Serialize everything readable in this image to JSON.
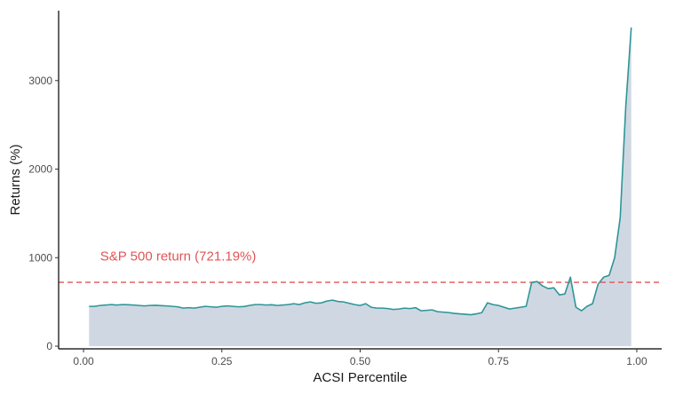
{
  "chart_data": {
    "type": "area",
    "xlabel": "ACSI Percentile",
    "ylabel": "Returns (%)",
    "xlim": [
      -0.045,
      1.045
    ],
    "ylim": [
      -30,
      3790
    ],
    "x_ticks": [
      0.0,
      0.25,
      0.5,
      0.75,
      1.0
    ],
    "x_tick_labels": [
      "0.00",
      "0.25",
      "0.50",
      "0.75",
      "1.00"
    ],
    "y_ticks": [
      0,
      1000,
      2000,
      3000
    ],
    "y_tick_labels": [
      "0",
      "1000",
      "2000",
      "3000"
    ],
    "grid": false,
    "colors": {
      "line": "#2e9597",
      "fill": "#cfd8e2",
      "reference": "#e05556",
      "axis": "#000000"
    },
    "reference_line": {
      "value": 721.19,
      "label": "S&P 500 return (721.19%)",
      "style": "dashed"
    },
    "series": [
      {
        "x": [
          0.01,
          0.02,
          0.03,
          0.04,
          0.05,
          0.06,
          0.07,
          0.08,
          0.09,
          0.1,
          0.11,
          0.12,
          0.13,
          0.14,
          0.15,
          0.16,
          0.17,
          0.18,
          0.19,
          0.2,
          0.21,
          0.22,
          0.23,
          0.24,
          0.25,
          0.26,
          0.27,
          0.28,
          0.29,
          0.3,
          0.31,
          0.32,
          0.33,
          0.34,
          0.35,
          0.36,
          0.37,
          0.38,
          0.39,
          0.4,
          0.41,
          0.42,
          0.43,
          0.44,
          0.45,
          0.46,
          0.47,
          0.48,
          0.49,
          0.5,
          0.51,
          0.52,
          0.53,
          0.54,
          0.55,
          0.56,
          0.57,
          0.58,
          0.59,
          0.6,
          0.61,
          0.62,
          0.63,
          0.64,
          0.65,
          0.66,
          0.67,
          0.68,
          0.69,
          0.7,
          0.71,
          0.72,
          0.73,
          0.74,
          0.75,
          0.76,
          0.77,
          0.78,
          0.79,
          0.8,
          0.81,
          0.82,
          0.83,
          0.84,
          0.85,
          0.86,
          0.87,
          0.88,
          0.89,
          0.9,
          0.91,
          0.92,
          0.93,
          0.94,
          0.95,
          0.96,
          0.97,
          0.98,
          0.99
        ],
        "y": [
          450,
          450,
          460,
          465,
          470,
          465,
          470,
          468,
          465,
          460,
          455,
          460,
          462,
          458,
          455,
          450,
          445,
          430,
          435,
          430,
          440,
          450,
          445,
          440,
          450,
          455,
          450,
          445,
          448,
          460,
          470,
          470,
          465,
          468,
          460,
          465,
          470,
          480,
          470,
          490,
          500,
          485,
          490,
          510,
          520,
          505,
          500,
          485,
          470,
          460,
          480,
          440,
          430,
          430,
          425,
          415,
          420,
          430,
          425,
          435,
          400,
          405,
          410,
          390,
          385,
          380,
          370,
          365,
          360,
          355,
          365,
          380,
          490,
          470,
          460,
          440,
          420,
          430,
          440,
          450,
          720,
          730,
          680,
          650,
          660,
          580,
          590,
          780,
          440,
          400,
          450,
          480,
          700,
          780,
          800,
          1000,
          1450,
          2700,
          3600
        ]
      }
    ]
  }
}
